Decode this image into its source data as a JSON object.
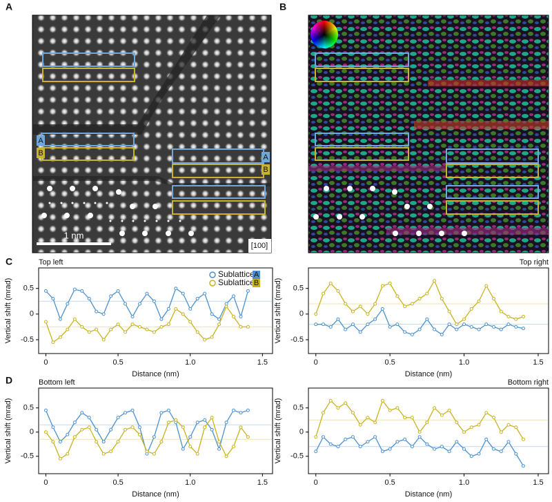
{
  "panels": [
    "A",
    "B",
    "C",
    "D"
  ],
  "image_a": {
    "scale_bar": "1 nm",
    "zone_axis": "[100]",
    "tags": [
      "A",
      "B",
      "A",
      "B"
    ]
  },
  "chart_data": [
    {
      "type": "line",
      "title": "Top left",
      "x_label": "Distance (nm)",
      "y_label": "Vertical shift (mrad)",
      "xlim": [
        -0.05,
        1.57
      ],
      "ylim": [
        -0.77,
        0.9
      ],
      "xticks": [
        0,
        0.5,
        {
          "value": 1,
          "label": "1.0"
        },
        1.5
      ],
      "yticks": [
        0.5,
        0,
        -0.5
      ],
      "x": [
        0,
        0.05,
        0.1,
        0.15,
        0.2,
        0.25,
        0.3,
        0.35,
        0.4,
        0.45,
        0.5,
        0.55,
        0.6,
        0.65,
        0.7,
        0.75,
        0.8,
        0.85,
        0.9,
        0.95,
        1,
        1.05,
        1.1,
        1.15,
        1.2,
        1.25,
        1.3,
        1.35,
        1.4
      ],
      "legend": true,
      "series": [
        {
          "name": "Sublattice",
          "tag": "A",
          "color": "#4a90d0",
          "mean": 0.25,
          "values": [
            0.45,
            0.3,
            -0.1,
            0.2,
            0.48,
            0.45,
            0.3,
            0.05,
            0.0,
            0.35,
            0.45,
            0.2,
            -0.05,
            0.2,
            0.4,
            0.25,
            -0.1,
            0.1,
            0.5,
            0.4,
            0.1,
            0.3,
            0.4,
            0.0,
            -0.1,
            0.2,
            0.35,
            -0.05,
            0.45
          ]
        },
        {
          "name": "Sublattice",
          "tag": "B",
          "color": "#c8b21e",
          "mean": -0.25,
          "values": [
            -0.15,
            -0.55,
            -0.45,
            -0.3,
            -0.1,
            -0.25,
            -0.35,
            -0.3,
            -0.5,
            -0.3,
            -0.2,
            -0.35,
            -0.2,
            -0.25,
            -0.3,
            -0.35,
            -0.25,
            -0.2,
            0.1,
            0.0,
            -0.15,
            -0.35,
            -0.5,
            -0.45,
            -0.2,
            0.15,
            -0.05,
            -0.25,
            -0.25
          ]
        }
      ]
    },
    {
      "type": "line",
      "title": "Top right",
      "x_label": "Distance (nm)",
      "y_label": "Vertical shift (mrad)",
      "xlim": [
        -0.05,
        1.57
      ],
      "ylim": [
        -0.77,
        0.9
      ],
      "xticks": [
        0,
        0.5,
        {
          "value": 1,
          "label": "1.0"
        },
        1.5
      ],
      "yticks": [
        0.5,
        0,
        -0.5
      ],
      "x": [
        0,
        0.05,
        0.1,
        0.15,
        0.2,
        0.25,
        0.3,
        0.35,
        0.4,
        0.45,
        0.5,
        0.55,
        0.6,
        0.65,
        0.7,
        0.75,
        0.8,
        0.85,
        0.9,
        0.95,
        1,
        1.05,
        1.1,
        1.15,
        1.2,
        1.25,
        1.3,
        1.35,
        1.4
      ],
      "legend": false,
      "series": [
        {
          "name": "Sublattice",
          "tag": "A",
          "color": "#4a90d0",
          "mean": -0.2,
          "values": [
            -0.2,
            -0.2,
            -0.25,
            -0.1,
            -0.3,
            -0.2,
            -0.35,
            -0.2,
            -0.1,
            0.1,
            -0.25,
            -0.2,
            -0.35,
            -0.4,
            -0.3,
            -0.1,
            -0.3,
            -0.4,
            -0.2,
            -0.3,
            -0.2,
            -0.25,
            -0.3,
            -0.2,
            -0.25,
            -0.3,
            -0.2,
            -0.25,
            -0.28
          ]
        },
        {
          "name": "Sublattice",
          "tag": "B",
          "color": "#c8b21e",
          "mean": 0.2,
          "values": [
            0.0,
            0.4,
            0.6,
            0.45,
            0.2,
            0.05,
            0.15,
            0.0,
            0.2,
            0.55,
            0.6,
            0.35,
            0.15,
            0.2,
            0.3,
            0.4,
            0.65,
            0.3,
            0.05,
            -0.2,
            -0.1,
            0.1,
            0.25,
            0.55,
            0.3,
            0.05,
            -0.05,
            -0.1,
            -0.05
          ]
        }
      ]
    },
    {
      "type": "line",
      "title": "Bottom left",
      "x_label": "Distance (nm)",
      "y_label": "Vertical shift (mrad)",
      "xlim": [
        -0.05,
        1.57
      ],
      "ylim": [
        -0.86,
        0.91
      ],
      "xticks": [
        0,
        0.5,
        {
          "value": 1,
          "label": "1.0"
        },
        1.5
      ],
      "yticks": [
        0.5,
        0,
        -0.5
      ],
      "x": [
        0,
        0.05,
        0.1,
        0.15,
        0.2,
        0.25,
        0.3,
        0.35,
        0.4,
        0.45,
        0.5,
        0.55,
        0.6,
        0.65,
        0.7,
        0.75,
        0.8,
        0.85,
        0.9,
        0.95,
        1,
        1.05,
        1.1,
        1.15,
        1.2,
        1.25,
        1.3,
        1.35,
        1.4
      ],
      "legend": false,
      "series": [
        {
          "name": "Sublattice",
          "tag": "A",
          "color": "#4a90d0",
          "mean": 0.15,
          "values": [
            0.45,
            0.1,
            -0.2,
            -0.05,
            0.2,
            0.4,
            0.3,
            0.05,
            -0.2,
            0.05,
            0.3,
            0.4,
            0.45,
            0.1,
            -0.45,
            -0.1,
            0.4,
            0.45,
            0.2,
            -0.35,
            -0.1,
            0.2,
            0.25,
            0.05,
            -0.35,
            0.2,
            0.45,
            0.4,
            0.45
          ]
        },
        {
          "name": "Sublattice",
          "tag": "B",
          "color": "#c8b21e",
          "mean": -0.15,
          "values": [
            0.0,
            -0.2,
            -0.55,
            -0.45,
            -0.1,
            0.05,
            0.1,
            -0.2,
            -0.45,
            -0.4,
            -0.2,
            0.05,
            0.1,
            -0.05,
            -0.4,
            -0.45,
            -0.2,
            0.2,
            0.25,
            0.1,
            -0.3,
            -0.45,
            0.1,
            0.3,
            -0.2,
            -0.5,
            -0.3,
            0.1,
            -0.1
          ]
        }
      ]
    },
    {
      "type": "line",
      "title": "Bottom right",
      "x_label": "Distance (nm)",
      "y_label": "Vertical shift (mrad)",
      "xlim": [
        -0.05,
        1.57
      ],
      "ylim": [
        -0.86,
        0.91
      ],
      "xticks": [
        0,
        0.5,
        {
          "value": 1,
          "label": "1.0"
        },
        1.5
      ],
      "yticks": [
        0.5,
        0,
        -0.5
      ],
      "x": [
        0,
        0.05,
        0.1,
        0.15,
        0.2,
        0.25,
        0.3,
        0.35,
        0.4,
        0.45,
        0.5,
        0.55,
        0.6,
        0.65,
        0.7,
        0.75,
        0.8,
        0.85,
        0.9,
        0.95,
        1,
        1.05,
        1.1,
        1.15,
        1.2,
        1.25,
        1.3,
        1.35,
        1.4
      ],
      "legend": false,
      "series": [
        {
          "name": "Sublattice",
          "tag": "A",
          "color": "#4a90d0",
          "mean": -0.3,
          "values": [
            -0.4,
            -0.1,
            -0.25,
            -0.3,
            -0.15,
            -0.1,
            -0.3,
            -0.2,
            -0.1,
            -0.4,
            -0.35,
            -0.2,
            -0.15,
            -0.3,
            -0.1,
            -0.25,
            -0.35,
            -0.3,
            -0.4,
            -0.2,
            -0.35,
            -0.5,
            -0.45,
            -0.15,
            -0.35,
            -0.4,
            -0.2,
            -0.45,
            -0.7
          ]
        },
        {
          "name": "Sublattice",
          "tag": "B",
          "color": "#c8b21e",
          "mean": 0.25,
          "values": [
            -0.1,
            0.4,
            0.65,
            0.5,
            0.6,
            0.4,
            0.15,
            0.3,
            0.2,
            0.65,
            0.45,
            0.5,
            0.3,
            0.3,
            0.0,
            0.2,
            0.5,
            0.35,
            0.45,
            0.2,
            0.0,
            0.1,
            0.15,
            0.4,
            0.3,
            0.0,
            0.15,
            0.1,
            -0.15
          ]
        }
      ]
    }
  ]
}
